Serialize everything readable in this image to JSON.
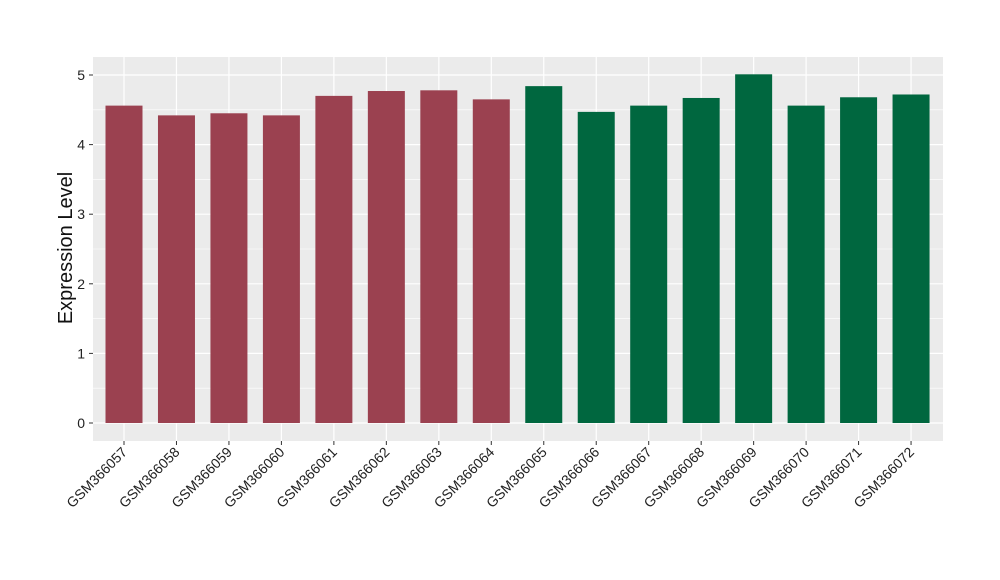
{
  "chart_data": {
    "type": "bar",
    "title": "",
    "xlabel": "",
    "ylabel": "Expression Level",
    "ylim": [
      0,
      5.2
    ],
    "yticks": [
      0,
      1,
      2,
      3,
      4,
      5
    ],
    "grid": true,
    "legend": "none",
    "categories": [
      "GSM366057",
      "GSM366058",
      "GSM366059",
      "GSM366060",
      "GSM366061",
      "GSM366062",
      "GSM366063",
      "GSM366064",
      "GSM366065",
      "GSM366066",
      "GSM366067",
      "GSM366068",
      "GSM366069",
      "GSM366070",
      "GSM366071",
      "GSM366072"
    ],
    "values": [
      4.56,
      4.42,
      4.45,
      4.42,
      4.7,
      4.77,
      4.78,
      4.65,
      4.84,
      4.47,
      4.56,
      4.67,
      5.01,
      4.56,
      4.68,
      4.72
    ],
    "bar_colors": [
      "#9b4150",
      "#9b4150",
      "#9b4150",
      "#9b4150",
      "#9b4150",
      "#9b4150",
      "#9b4150",
      "#9b4150",
      "#00673f",
      "#00673f",
      "#00673f",
      "#00673f",
      "#00673f",
      "#00673f",
      "#00673f",
      "#00673f"
    ],
    "colors": {
      "panel_background": "#ebebeb",
      "grid": "#ffffff",
      "group_1": "#9b4150",
      "group_2": "#00673f"
    }
  }
}
